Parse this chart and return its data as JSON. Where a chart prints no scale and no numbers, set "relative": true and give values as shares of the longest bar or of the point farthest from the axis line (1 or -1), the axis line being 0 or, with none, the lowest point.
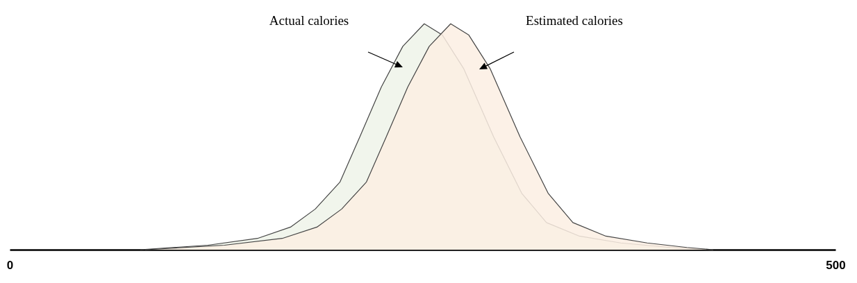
{
  "chart_data": {
    "type": "area",
    "relative": true,
    "xlim": [
      0,
      500
    ],
    "xticks": [
      0,
      500
    ],
    "grid": false,
    "annotations": [
      "Actual calories",
      "Estimated calories"
    ],
    "series": [
      {
        "color": "#f1f5ec",
        "x": [
          79,
          120,
          150,
          170,
          185,
          200,
          212,
          225,
          238,
          251,
          262,
          275,
          293,
          310,
          325,
          345,
          370,
          400,
          426
        ],
        "values": [
          0,
          0.02,
          0.05,
          0.1,
          0.18,
          0.3,
          0.5,
          0.72,
          0.9,
          1,
          0.95,
          0.8,
          0.5,
          0.25,
          0.12,
          0.06,
          0.03,
          0.01,
          0
        ]
      },
      {
        "color": "#fbeee3",
        "x": [
          82,
          130,
          165,
          186,
          201,
          216,
          228,
          241,
          254,
          267,
          278,
          291,
          309,
          326,
          341,
          361,
          386,
          410,
          426
        ],
        "values": [
          0,
          0.02,
          0.05,
          0.1,
          0.18,
          0.3,
          0.5,
          0.72,
          0.9,
          1,
          0.95,
          0.8,
          0.5,
          0.25,
          0.12,
          0.06,
          0.03,
          0.01,
          0
        ]
      }
    ]
  }
}
